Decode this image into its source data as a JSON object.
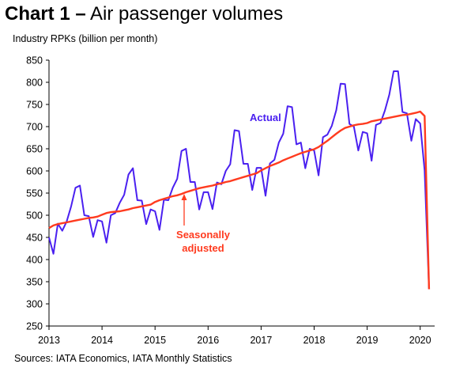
{
  "title": {
    "bold": "Chart 1 –",
    "rest": "Air passenger volumes"
  },
  "ylabel": "Industry RPKs (billion per month)",
  "source": "Sources: IATA Economics, IATA Monthly Statistics",
  "colors": {
    "actual": "#4a20f0",
    "seasonal": "#ff3b1f",
    "axis": "#000000"
  },
  "chart_data": {
    "type": "line",
    "x_start": "2013-01",
    "x_step": "month",
    "xticks": [
      "2013",
      "2014",
      "2015",
      "2016",
      "2017",
      "2018",
      "2019",
      "2020"
    ],
    "yticks": [
      250,
      300,
      350,
      400,
      450,
      500,
      550,
      600,
      650,
      700,
      750,
      800,
      850
    ],
    "ylim": [
      250,
      850
    ],
    "grid": false,
    "legend": "none",
    "annotations": [
      {
        "text": "Actual",
        "series": "actual"
      },
      {
        "text1": "Seasonally",
        "text2": "adjusted",
        "series": "seasonal"
      }
    ],
    "series": [
      {
        "id": "actual",
        "values": [
          450,
          413,
          481,
          465,
          486,
          520,
          562,
          567,
          500,
          498,
          451,
          489,
          486,
          438,
          500,
          505,
          528,
          546,
          592,
          606,
          534,
          533,
          480,
          513,
          509,
          467,
          535,
          534,
          562,
          582,
          645,
          650,
          575,
          575,
          513,
          552,
          552,
          514,
          574,
          570,
          600,
          615,
          692,
          690,
          616,
          616,
          557,
          607,
          607,
          544,
          617,
          625,
          664,
          684,
          746,
          744,
          660,
          664,
          606,
          650,
          646,
          590,
          676,
          682,
          702,
          737,
          797,
          796,
          706,
          700,
          646,
          688,
          685,
          623,
          704,
          708,
          736,
          772,
          825,
          825,
          733,
          730,
          668,
          717,
          707,
          601,
          333
        ]
      },
      {
        "id": "seasonal",
        "values": [
          471,
          477,
          480,
          482,
          484,
          486,
          488,
          490,
          492,
          494,
          495,
          497,
          501,
          505,
          507,
          508,
          509,
          511,
          513,
          516,
          518,
          520,
          522,
          524,
          530,
          534,
          537,
          540,
          543,
          545,
          548,
          552,
          555,
          558,
          561,
          563,
          565,
          567,
          570,
          572,
          575,
          577,
          580,
          583,
          586,
          589,
          592,
          595,
          601,
          606,
          611,
          615,
          619,
          624,
          628,
          632,
          636,
          640,
          643,
          646,
          649,
          654,
          661,
          668,
          676,
          684,
          691,
          697,
          700,
          703,
          705,
          706,
          708,
          712,
          714,
          716,
          718,
          720,
          722,
          724,
          726,
          727,
          729,
          731,
          734,
          724,
          333
        ]
      }
    ]
  }
}
